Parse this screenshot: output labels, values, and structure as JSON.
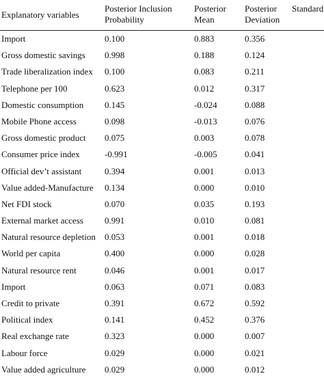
{
  "table": {
    "headers": {
      "variable": "Explanatory variables",
      "pip_line1": "Posterior Inclusion",
      "pip_line2": "Probability",
      "mean_line1": "Posterior",
      "mean_line2": "Mean",
      "sd_line1": "Posterior",
      "sd_line2": "Deviation",
      "standard": "Standard"
    },
    "rows": [
      {
        "variable": "Import",
        "pip": "0.100",
        "mean": "0.883",
        "sd": "0.356"
      },
      {
        "variable": "Gross domestic savings",
        "pip": "0.998",
        "mean": "0.188",
        "sd": "0.124"
      },
      {
        "variable": "Trade liberalization index",
        "pip": "0.100",
        "mean": "0.083",
        "sd": "0.211"
      },
      {
        "variable": "Telephone per 100",
        "pip": "0.623",
        "mean": "0.012",
        "sd": "0.317"
      },
      {
        "variable": "Domestic consumption",
        "pip": "0.145",
        "mean": "-0.024",
        "sd": "0.088"
      },
      {
        "variable": "Mobile Phone access",
        "pip": "0.098",
        "mean": "-0.013",
        "sd": "0.076"
      },
      {
        "variable": "Gross domestic product",
        "pip": "0.075",
        "mean": "0.003",
        "sd": "0.078"
      },
      {
        "variable": "Consumer price index",
        "pip": "-0.991",
        "mean": "-0.005",
        "sd": "0.041"
      },
      {
        "variable": "Official dev’t assistant",
        "pip": "0.394",
        "mean": "0.001",
        "sd": "0.013"
      },
      {
        "variable": "Value added-Manufacture",
        "pip": "0.134",
        "mean": "0.000",
        "sd": "0.010"
      },
      {
        "variable": "Net FDI stock",
        "pip": "0.070",
        "mean": "0.035",
        "sd": "0.193"
      },
      {
        "variable": "External market access",
        "pip": "0.991",
        "mean": "0.010",
        "sd": "0.081"
      },
      {
        "variable": "Natural resource depletion",
        "pip": "0.053",
        "mean": "0.001",
        "sd": "0.018"
      },
      {
        "variable": "World per capita",
        "pip": "0.400",
        "mean": "0.000",
        "sd": "0.028"
      },
      {
        "variable": "Natural resource rent",
        "pip": "0.046",
        "mean": "0.001",
        "sd": "0.017"
      },
      {
        "variable": "Import",
        "pip": "0.063",
        "mean": "0.071",
        "sd": "0.083"
      },
      {
        "variable": "Credit to private",
        "pip": "0.391",
        "mean": "0.672",
        "sd": "0.592"
      },
      {
        "variable": "Political index",
        "pip": "0.141",
        "mean": "0.452",
        "sd": "0.376"
      },
      {
        "variable": "Real exchange rate",
        "pip": "0.323",
        "mean": "0.000",
        "sd": "0.007"
      },
      {
        "variable": "Labour force",
        "pip": "0.029",
        "mean": "0.000",
        "sd": "0.021"
      },
      {
        "variable": "Value added agriculture",
        "pip": "0.029",
        "mean": "0.000",
        "sd": "0.012"
      }
    ]
  }
}
